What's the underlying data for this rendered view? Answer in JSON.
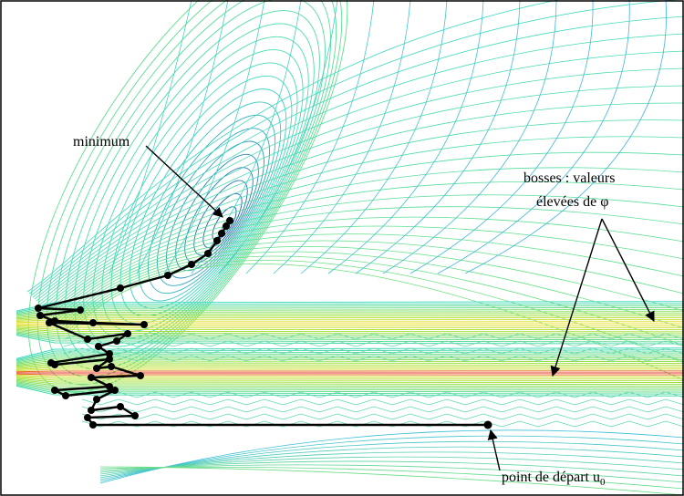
{
  "figure": {
    "annotations": {
      "minimum": "minimum",
      "bumps_line1": "bosses : valeurs",
      "bumps_line2_prefix": "élevées de ",
      "bumps_line2_symbol": "φ",
      "start_prefix": "point de départ u",
      "start_subscript": "0"
    },
    "colors": {
      "frame": "#000000",
      "path": "#000000",
      "contour_low": "#1f3fbf",
      "contour_mid": "#3fd9c0",
      "contour_high": "#e03020"
    }
  }
}
